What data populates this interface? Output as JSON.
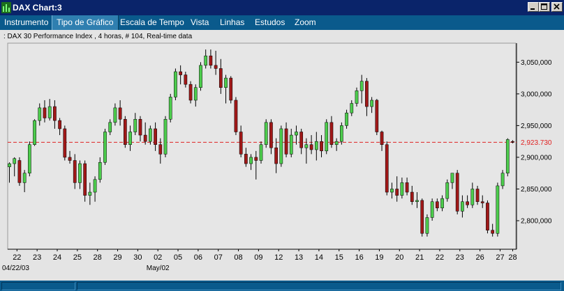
{
  "window": {
    "title": "DAX Chart:3"
  },
  "menu": {
    "items": [
      "Instrumento",
      "Tipo de Gráfico",
      "Escala de Tempo",
      "Vista",
      "Linhas",
      "Estudos",
      "Zoom"
    ],
    "active_index": 1
  },
  "chart_info": ": DAX 30 Performance Index , 4 horas, # 104, Real-time data",
  "colors": {
    "up": "#4ccc4c",
    "down": "#a01818",
    "titlebar": "#0a246a",
    "menubar": "#0a5a8c",
    "last_price_line": "#e02020",
    "plot_bg": "#e4e4e4"
  },
  "chart_data": {
    "type": "candlestick",
    "title": "DAX 30 Performance Index",
    "y_ticks": [
      2800,
      2850,
      2900,
      2950,
      3000,
      3050
    ],
    "y_tick_labels": [
      "2,800,000",
      "2,850,000",
      "2,900,000",
      "2,950,000",
      "3,000,000",
      "3,050,000"
    ],
    "ylim": [
      2755,
      3080
    ],
    "last_price": 2923.73,
    "last_price_label": "2,923.730",
    "day_labels": [
      "22",
      "23",
      "24",
      "25",
      "28",
      "29",
      "30",
      "02",
      "05",
      "06",
      "07",
      "08",
      "09",
      "12",
      "13",
      "14",
      "15",
      "16",
      "19",
      "20",
      "21",
      "22",
      "23",
      "26",
      "27",
      "28"
    ],
    "date_markers": [
      {
        "label": "04/22/03",
        "at_day": 0
      },
      {
        "label": "May/02",
        "at_day": 7
      }
    ],
    "candles_per_day": 4,
    "candles": [
      {
        "o": 2885,
        "h": 2892,
        "l": 2860,
        "c": 2890
      },
      {
        "o": 2890,
        "h": 2900,
        "l": 2870,
        "c": 2898
      },
      {
        "o": 2895,
        "h": 2900,
        "l": 2855,
        "c": 2860
      },
      {
        "o": 2860,
        "h": 2880,
        "l": 2845,
        "c": 2875
      },
      {
        "o": 2875,
        "h": 2925,
        "l": 2870,
        "c": 2920
      },
      {
        "o": 2920,
        "h": 2960,
        "l": 2918,
        "c": 2958
      },
      {
        "o": 2958,
        "h": 2985,
        "l": 2950,
        "c": 2978
      },
      {
        "o": 2978,
        "h": 2990,
        "l": 2955,
        "c": 2962
      },
      {
        "o": 2962,
        "h": 2992,
        "l": 2958,
        "c": 2980
      },
      {
        "o": 2980,
        "h": 2990,
        "l": 2945,
        "c": 2958
      },
      {
        "o": 2958,
        "h": 2962,
        "l": 2935,
        "c": 2945
      },
      {
        "o": 2945,
        "h": 2950,
        "l": 2895,
        "c": 2900
      },
      {
        "o": 2900,
        "h": 2910,
        "l": 2890,
        "c": 2895
      },
      {
        "o": 2895,
        "h": 2905,
        "l": 2850,
        "c": 2860
      },
      {
        "o": 2860,
        "h": 2895,
        "l": 2850,
        "c": 2890
      },
      {
        "o": 2890,
        "h": 2895,
        "l": 2830,
        "c": 2840
      },
      {
        "o": 2840,
        "h": 2860,
        "l": 2825,
        "c": 2845
      },
      {
        "o": 2845,
        "h": 2870,
        "l": 2830,
        "c": 2865
      },
      {
        "o": 2865,
        "h": 2900,
        "l": 2860,
        "c": 2892
      },
      {
        "o": 2892,
        "h": 2945,
        "l": 2888,
        "c": 2940
      },
      {
        "o": 2940,
        "h": 2960,
        "l": 2935,
        "c": 2955
      },
      {
        "o": 2955,
        "h": 2985,
        "l": 2950,
        "c": 2978
      },
      {
        "o": 2978,
        "h": 2990,
        "l": 2950,
        "c": 2960
      },
      {
        "o": 2960,
        "h": 2965,
        "l": 2915,
        "c": 2920
      },
      {
        "o": 2920,
        "h": 2950,
        "l": 2910,
        "c": 2940
      },
      {
        "o": 2940,
        "h": 2970,
        "l": 2935,
        "c": 2960
      },
      {
        "o": 2960,
        "h": 2965,
        "l": 2925,
        "c": 2935
      },
      {
        "o": 2935,
        "h": 2955,
        "l": 2920,
        "c": 2925
      },
      {
        "o": 2925,
        "h": 2950,
        "l": 2920,
        "c": 2945
      },
      {
        "o": 2945,
        "h": 2955,
        "l": 2910,
        "c": 2920
      },
      {
        "o": 2920,
        "h": 2930,
        "l": 2890,
        "c": 2905
      },
      {
        "o": 2905,
        "h": 2965,
        "l": 2900,
        "c": 2960
      },
      {
        "o": 2960,
        "h": 3000,
        "l": 2955,
        "c": 2995
      },
      {
        "o": 2995,
        "h": 3040,
        "l": 2990,
        "c": 3035
      },
      {
        "o": 3035,
        "h": 3045,
        "l": 3015,
        "c": 3030
      },
      {
        "o": 3030,
        "h": 3035,
        "l": 3010,
        "c": 3015
      },
      {
        "o": 3015,
        "h": 3020,
        "l": 2985,
        "c": 2990
      },
      {
        "o": 2990,
        "h": 3015,
        "l": 2980,
        "c": 3010
      },
      {
        "o": 3010,
        "h": 3050,
        "l": 3005,
        "c": 3045
      },
      {
        "o": 3045,
        "h": 3070,
        "l": 3040,
        "c": 3060
      },
      {
        "o": 3060,
        "h": 3070,
        "l": 3040,
        "c": 3045
      },
      {
        "o": 3045,
        "h": 3068,
        "l": 3030,
        "c": 3040
      },
      {
        "o": 3040,
        "h": 3055,
        "l": 3000,
        "c": 3010
      },
      {
        "o": 3010,
        "h": 3030,
        "l": 2985,
        "c": 3025
      },
      {
        "o": 3025,
        "h": 3028,
        "l": 2985,
        "c": 2990
      },
      {
        "o": 2990,
        "h": 2995,
        "l": 2935,
        "c": 2940
      },
      {
        "o": 2940,
        "h": 2950,
        "l": 2900,
        "c": 2905
      },
      {
        "o": 2905,
        "h": 2915,
        "l": 2885,
        "c": 2890
      },
      {
        "o": 2890,
        "h": 2905,
        "l": 2880,
        "c": 2900
      },
      {
        "o": 2900,
        "h": 2910,
        "l": 2865,
        "c": 2895
      },
      {
        "o": 2895,
        "h": 2925,
        "l": 2890,
        "c": 2920
      },
      {
        "o": 2920,
        "h": 2960,
        "l": 2915,
        "c": 2955
      },
      {
        "o": 2955,
        "h": 2960,
        "l": 2905,
        "c": 2915
      },
      {
        "o": 2915,
        "h": 2930,
        "l": 2875,
        "c": 2890
      },
      {
        "o": 2890,
        "h": 2950,
        "l": 2885,
        "c": 2945
      },
      {
        "o": 2945,
        "h": 2955,
        "l": 2900,
        "c": 2905
      },
      {
        "o": 2905,
        "h": 2945,
        "l": 2900,
        "c": 2935
      },
      {
        "o": 2935,
        "h": 2950,
        "l": 2920,
        "c": 2940
      },
      {
        "o": 2940,
        "h": 2945,
        "l": 2905,
        "c": 2915
      },
      {
        "o": 2915,
        "h": 2930,
        "l": 2890,
        "c": 2920
      },
      {
        "o": 2920,
        "h": 2935,
        "l": 2905,
        "c": 2912
      },
      {
        "o": 2912,
        "h": 2940,
        "l": 2895,
        "c": 2925
      },
      {
        "o": 2925,
        "h": 2935,
        "l": 2900,
        "c": 2910
      },
      {
        "o": 2910,
        "h": 2960,
        "l": 2905,
        "c": 2955
      },
      {
        "o": 2955,
        "h": 2965,
        "l": 2915,
        "c": 2920
      },
      {
        "o": 2920,
        "h": 2930,
        "l": 2910,
        "c": 2925
      },
      {
        "o": 2925,
        "h": 2955,
        "l": 2920,
        "c": 2950
      },
      {
        "o": 2950,
        "h": 2975,
        "l": 2945,
        "c": 2970
      },
      {
        "o": 2970,
        "h": 2990,
        "l": 2965,
        "c": 2985
      },
      {
        "o": 2985,
        "h": 3010,
        "l": 2980,
        "c": 3005
      },
      {
        "o": 3005,
        "h": 3030,
        "l": 2985,
        "c": 3020
      },
      {
        "o": 3020,
        "h": 3025,
        "l": 2965,
        "c": 2980
      },
      {
        "o": 2980,
        "h": 2995,
        "l": 2970,
        "c": 2990
      },
      {
        "o": 2990,
        "h": 2992,
        "l": 2935,
        "c": 2940
      },
      {
        "o": 2940,
        "h": 2942,
        "l": 2910,
        "c": 2920
      },
      {
        "o": 2920,
        "h": 2925,
        "l": 2840,
        "c": 2845
      },
      {
        "o": 2845,
        "h": 2860,
        "l": 2835,
        "c": 2850
      },
      {
        "o": 2850,
        "h": 2870,
        "l": 2830,
        "c": 2840
      },
      {
        "o": 2840,
        "h": 2868,
        "l": 2835,
        "c": 2860
      },
      {
        "o": 2860,
        "h": 2868,
        "l": 2840,
        "c": 2845
      },
      {
        "o": 2845,
        "h": 2855,
        "l": 2825,
        "c": 2830
      },
      {
        "o": 2830,
        "h": 2845,
        "l": 2820,
        "c": 2832
      },
      {
        "o": 2832,
        "h": 2835,
        "l": 2775,
        "c": 2780
      },
      {
        "o": 2780,
        "h": 2810,
        "l": 2775,
        "c": 2805
      },
      {
        "o": 2805,
        "h": 2835,
        "l": 2800,
        "c": 2830
      },
      {
        "o": 2830,
        "h": 2835,
        "l": 2815,
        "c": 2820
      },
      {
        "o": 2820,
        "h": 2840,
        "l": 2815,
        "c": 2835
      },
      {
        "o": 2835,
        "h": 2865,
        "l": 2830,
        "c": 2860
      },
      {
        "o": 2860,
        "h": 2875,
        "l": 2850,
        "c": 2875
      },
      {
        "o": 2875,
        "h": 2880,
        "l": 2810,
        "c": 2815
      },
      {
        "o": 2815,
        "h": 2840,
        "l": 2805,
        "c": 2830
      },
      {
        "o": 2830,
        "h": 2840,
        "l": 2820,
        "c": 2825
      },
      {
        "o": 2825,
        "h": 2860,
        "l": 2820,
        "c": 2850
      },
      {
        "o": 2850,
        "h": 2855,
        "l": 2825,
        "c": 2830
      },
      {
        "o": 2830,
        "h": 2840,
        "l": 2820,
        "c": 2828
      },
      {
        "o": 2828,
        "h": 2832,
        "l": 2780,
        "c": 2785
      },
      {
        "o": 2785,
        "h": 2795,
        "l": 2775,
        "c": 2780
      },
      {
        "o": 2780,
        "h": 2860,
        "l": 2775,
        "c": 2855
      },
      {
        "o": 2855,
        "h": 2880,
        "l": 2850,
        "c": 2875
      },
      {
        "o": 2875,
        "h": 2930,
        "l": 2870,
        "c": 2928
      },
      {
        "o": 2925,
        "h": 2927,
        "l": 2922,
        "c": 2924
      }
    ]
  }
}
